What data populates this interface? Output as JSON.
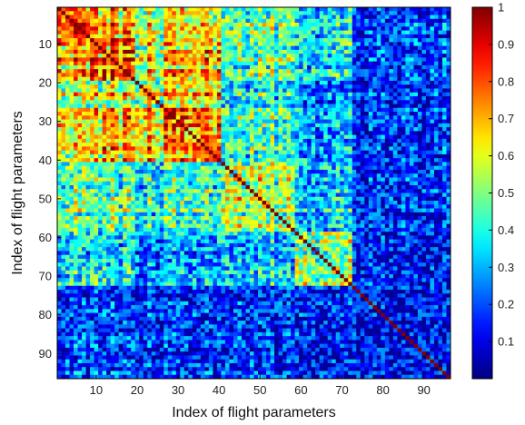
{
  "chart_data": {
    "type": "heatmap",
    "title": "",
    "xlabel": "Index of flight parameters",
    "ylabel": "Index of flight parameters",
    "n": 96,
    "xlim": [
      0.5,
      96.5
    ],
    "ylim": [
      0.5,
      96.5
    ],
    "y_direction": "top-to-bottom",
    "x_ticks": [
      10,
      20,
      30,
      40,
      50,
      60,
      70,
      80,
      90
    ],
    "y_ticks": [
      10,
      20,
      30,
      40,
      50,
      60,
      70,
      80,
      90
    ],
    "colormap": "jet",
    "color_range": [
      0,
      1
    ],
    "colorbar": {
      "placement": "right",
      "ticks": [
        {
          "value": 0.1,
          "label": "0.1"
        },
        {
          "value": 0.2,
          "label": "0.2"
        },
        {
          "value": 0.3,
          "label": "0.3"
        },
        {
          "value": 0.4,
          "label": "0.4"
        },
        {
          "value": 0.5,
          "label": "0.5"
        },
        {
          "value": 0.6,
          "label": "0.6"
        },
        {
          "value": 0.7,
          "label": "0.7"
        },
        {
          "value": 0.8,
          "label": "0.8"
        },
        {
          "value": 0.9,
          "label": "0.9"
        },
        {
          "value": 1.0,
          "label": "1"
        }
      ]
    },
    "diagonal_value": 1.0,
    "block_summary": {
      "parameter_groups": [
        [
          1,
          8
        ],
        [
          9,
          19
        ],
        [
          20,
          40
        ],
        [
          41,
          58
        ],
        [
          59,
          72
        ],
        [
          73,
          96
        ]
      ],
      "mean_correlation": [
        [
          0.95,
          0.8,
          0.7,
          0.55,
          0.4,
          0.22
        ],
        [
          0.8,
          0.85,
          0.7,
          0.5,
          0.4,
          0.2
        ],
        [
          0.7,
          0.7,
          0.78,
          0.45,
          0.3,
          0.18
        ],
        [
          0.55,
          0.5,
          0.45,
          0.6,
          0.35,
          0.18
        ],
        [
          0.4,
          0.4,
          0.3,
          0.35,
          0.55,
          0.15
        ],
        [
          0.22,
          0.2,
          0.18,
          0.18,
          0.15,
          0.12
        ]
      ]
    }
  }
}
